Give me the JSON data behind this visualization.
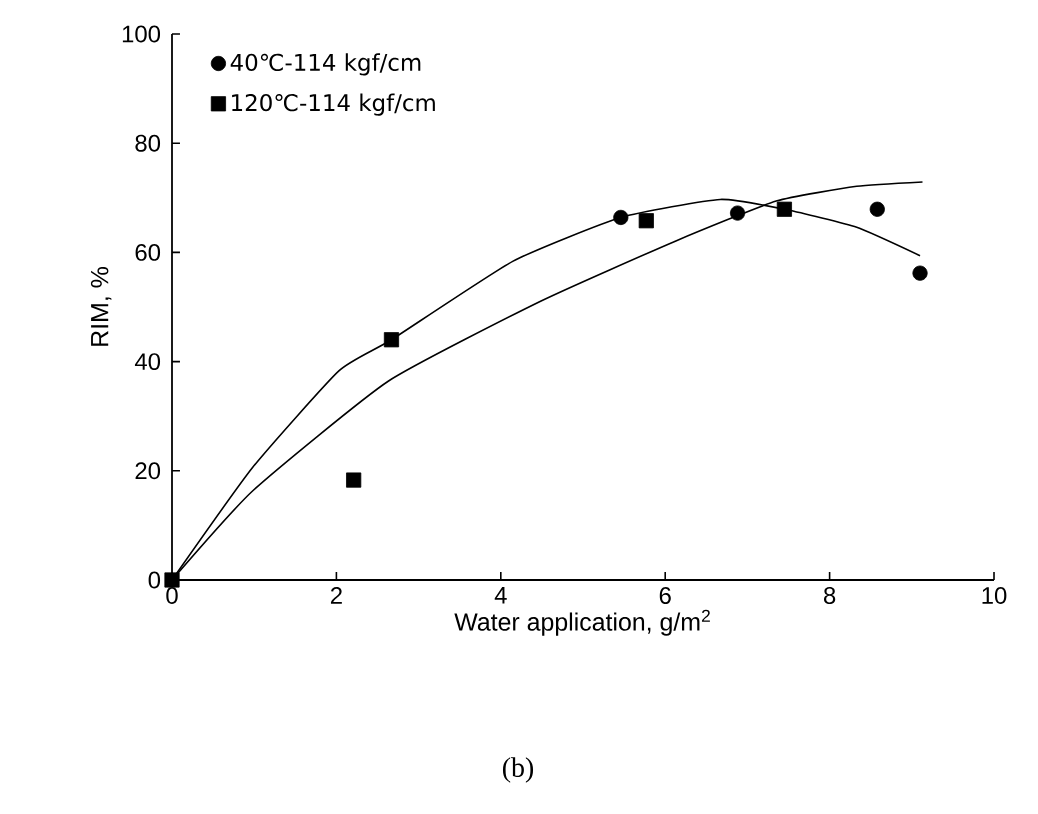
{
  "chart_data": {
    "type": "scatter",
    "xlabel": "Water application, g/m$^{2}$",
    "ylabel": "RIM, %",
    "annotations": [
      "(b)"
    ],
    "xlim": [
      0,
      10
    ],
    "ylim": [
      0,
      100
    ],
    "xticks": [
      0,
      2,
      4,
      6,
      8,
      10
    ],
    "yticks": [
      0,
      20,
      40,
      60,
      80,
      100
    ],
    "grid": false,
    "legend": "top left",
    "series": [
      {
        "name": "40℃-114 kgf/cm",
        "marker": "circle",
        "color": "#000000",
        "x": [
          5.46,
          6.88,
          8.58,
          9.1
        ],
        "values": [
          66.4,
          67.2,
          67.9,
          56.2
        ]
      },
      {
        "name": "120℃-114 kgf/cm",
        "marker": "square",
        "color": "#000000",
        "x": [
          0,
          2.21,
          2.67,
          5.77,
          7.45
        ],
        "values": [
          0,
          18.3,
          44,
          65.8,
          67.9
        ]
      },
      {
        "type": "line",
        "marker": "none",
        "color": "#000000",
        "x": [
          0,
          0.98,
          2.03,
          2.67,
          4.15,
          5.46,
          6.67,
          7.48,
          8.33,
          9.1
        ],
        "values": [
          0,
          20.6,
          38.3,
          44,
          58.4,
          66.4,
          69.7,
          67.8,
          64.6,
          59.4
        ]
      },
      {
        "type": "line",
        "marker": "none",
        "color": "#000000",
        "x": [
          0,
          0.98,
          2.63,
          4.49,
          6.13,
          7.35,
          8.33,
          9.13
        ],
        "values": [
          0,
          16.3,
          36.4,
          51.1,
          62.1,
          69.4,
          72.1,
          72.9
        ]
      }
    ]
  }
}
